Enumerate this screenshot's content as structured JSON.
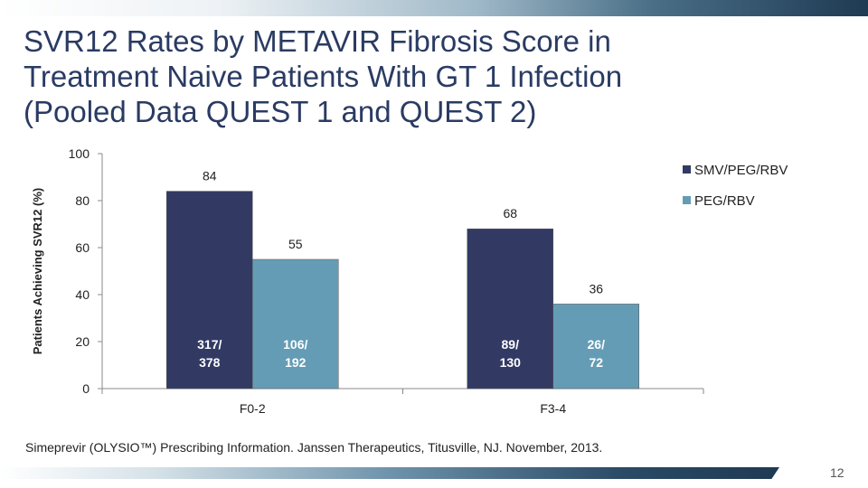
{
  "slide": {
    "title_lines": [
      "SVR12 Rates by METAVIR Fibrosis Score in",
      "Treatment Naive Patients With GT 1 Infection",
      "(Pooled Data QUEST 1 and QUEST 2)"
    ],
    "footnote": "Simeprevir (OLYSIO™) Prescribing Information. Janssen Therapeutics, Titusville, NJ. November, 2013.",
    "page_number": "12"
  },
  "chart_data": {
    "type": "bar",
    "title": "",
    "ylabel": "Patients Achieving SVR12 (%)",
    "xlabel": "",
    "ylim": [
      0,
      100
    ],
    "yticks": [
      0,
      20,
      40,
      60,
      80,
      100
    ],
    "categories": [
      "F0-2",
      "F3-4"
    ],
    "legend_position": "top-right",
    "grid": false,
    "series": [
      {
        "name": "SMV/PEG/RBV",
        "color": "#323a64",
        "values": [
          84,
          68
        ],
        "inner_labels": [
          [
            "317/",
            "378"
          ],
          [
            "89/",
            "130"
          ]
        ]
      },
      {
        "name": "PEG/RBV",
        "color": "#659cb5",
        "values": [
          55,
          36
        ],
        "inner_labels": [
          [
            "106/",
            "192"
          ],
          [
            "26/",
            "72"
          ]
        ]
      }
    ]
  }
}
